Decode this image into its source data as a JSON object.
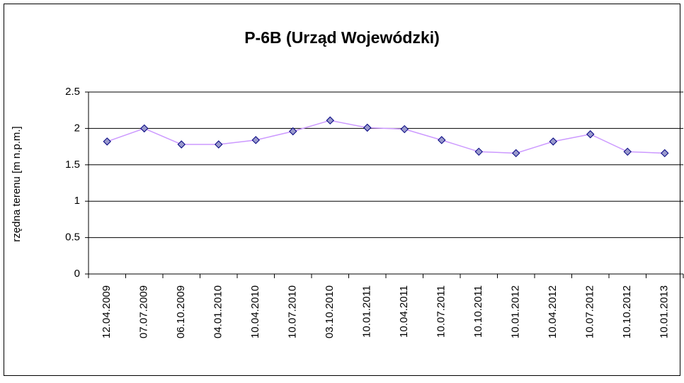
{
  "chart_data": {
    "type": "line",
    "title": "P-6B (Urząd Wojewódzki)",
    "y_label": "rzędna terenu [m n.p.m.]",
    "categories": [
      "12.04.2009",
      "07.07.2009",
      "06.10.2009",
      "04.01.2010",
      "10.04.2010",
      "10.07.2010",
      "03.10.2010",
      "10.01.2011",
      "10.04.2011",
      "10.07.2011",
      "10.10.2011",
      "10.01.2012",
      "10.04.2012",
      "10.07.2012",
      "10.10.2012",
      "10.01.2013"
    ],
    "values": [
      1.82,
      2.0,
      1.78,
      1.78,
      1.84,
      1.96,
      2.11,
      2.01,
      1.99,
      1.84,
      1.68,
      1.66,
      1.82,
      1.92,
      1.68,
      1.66
    ],
    "color": "#cc99ff",
    "marker_color": "#9999cc",
    "ylim": [
      0,
      2.5
    ],
    "yticks": [
      0,
      0.5,
      1,
      1.5,
      2,
      2.5
    ],
    "grid": true
  }
}
